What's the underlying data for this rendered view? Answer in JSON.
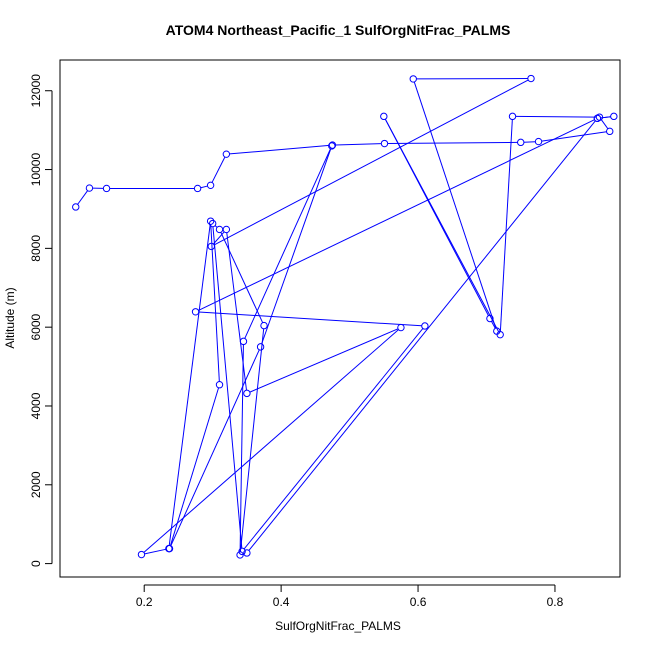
{
  "chart_data": {
    "type": "line",
    "title": "ATOM4 Northeast_Pacific_1 SulfOrgNitFrac_PALMS",
    "xlabel": "SulfOrgNitFrac_PALMS",
    "ylabel": "Altitude (m)",
    "xlim": [
      0.077,
      0.895
    ],
    "ylim": [
      -340,
      12780
    ],
    "xticks": [
      0.2,
      0.4,
      0.6,
      0.8
    ],
    "xtick_labels": [
      "0.2",
      "0.4",
      "0.6",
      "0.8"
    ],
    "yticks": [
      0,
      2000,
      4000,
      6000,
      8000,
      10000,
      12000
    ],
    "ytick_labels": [
      "0",
      "2000",
      "4000",
      "6000",
      "8000",
      "10000",
      "12000"
    ],
    "grid": false,
    "legend": "none",
    "color": "#0000ff",
    "markers": "open-circle",
    "series": [
      {
        "x": [
          0.1,
          0.12,
          0.145,
          0.278,
          0.297,
          0.32,
          0.475,
          0.551,
          0.75,
          0.776,
          0.88,
          0.865,
          0.738,
          0.72,
          0.55,
          0.705,
          0.715,
          0.593,
          0.765,
          0.298,
          0.32,
          0.35,
          0.575,
          0.196,
          0.236,
          0.297,
          0.31,
          0.237,
          0.37,
          0.474,
          0.345,
          0.34,
          0.375,
          0.31,
          0.3,
          0.343,
          0.61,
          0.275,
          0.862,
          0.886,
          0.862,
          0.35
        ],
        "y": [
          9050,
          9530,
          9520,
          9520,
          9600,
          10390,
          10620,
          10660,
          10690,
          10710,
          10970,
          11330,
          11350,
          5810,
          11350,
          6220,
          5900,
          12300,
          12310,
          8050,
          8480,
          4320,
          5990,
          230,
          380,
          8690,
          4540,
          380,
          5500,
          10600,
          5640,
          220,
          6040,
          8480,
          8630,
          310,
          6030,
          6390,
          11300,
          11350,
          11300,
          270
        ]
      }
    ]
  }
}
